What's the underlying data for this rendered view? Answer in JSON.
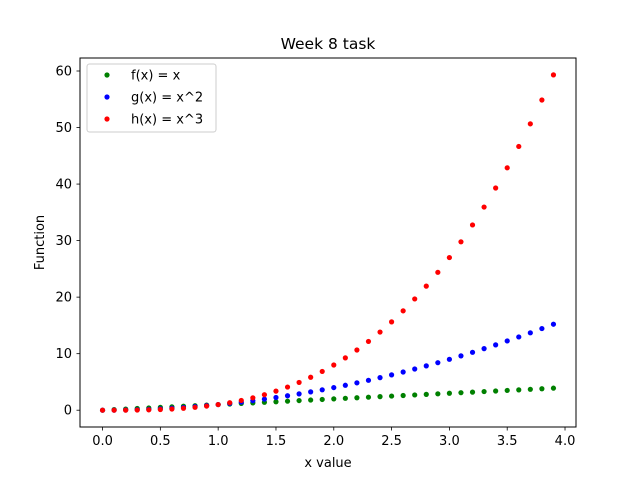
{
  "chart_data": {
    "type": "scatter",
    "title": "Week 8 task",
    "xlabel": "x value",
    "ylabel": "Function",
    "xlim": [
      -0.195,
      4.095
    ],
    "ylim": [
      -2.97,
      62.3
    ],
    "xticks": [
      0.0,
      0.5,
      1.0,
      1.5,
      2.0,
      2.5,
      3.0,
      3.5,
      4.0
    ],
    "xtick_labels": [
      "0.0",
      "0.5",
      "1.0",
      "1.5",
      "2.0",
      "2.5",
      "3.0",
      "3.5",
      "4.0"
    ],
    "yticks": [
      0,
      10,
      20,
      30,
      40,
      50,
      60
    ],
    "ytick_labels": [
      "0",
      "10",
      "20",
      "30",
      "40",
      "50",
      "60"
    ],
    "grid": false,
    "legend_position": "top-left",
    "x": [
      0.0,
      0.1,
      0.2,
      0.3,
      0.4,
      0.5,
      0.6,
      0.7,
      0.8,
      0.9,
      1.0,
      1.1,
      1.2,
      1.3,
      1.4,
      1.5,
      1.6,
      1.7,
      1.8,
      1.9,
      2.0,
      2.1,
      2.2,
      2.3,
      2.4,
      2.5,
      2.6,
      2.7,
      2.8,
      2.9,
      3.0,
      3.1,
      3.2,
      3.3,
      3.4,
      3.5,
      3.6,
      3.7,
      3.8,
      3.9
    ],
    "series": [
      {
        "name": "f(x) = x",
        "color": "#008000",
        "values": [
          0.0,
          0.1,
          0.2,
          0.3,
          0.4,
          0.5,
          0.6,
          0.7,
          0.8,
          0.9,
          1.0,
          1.1,
          1.2,
          1.3,
          1.4,
          1.5,
          1.6,
          1.7,
          1.8,
          1.9,
          2.0,
          2.1,
          2.2,
          2.3,
          2.4,
          2.5,
          2.6,
          2.7,
          2.8,
          2.9,
          3.0,
          3.1,
          3.2,
          3.3,
          3.4,
          3.5,
          3.6,
          3.7,
          3.8,
          3.9
        ]
      },
      {
        "name": "g(x) = x^2",
        "color": "#0000ff",
        "values": [
          0.0,
          0.01,
          0.04,
          0.09,
          0.16,
          0.25,
          0.36,
          0.49,
          0.64,
          0.81,
          1.0,
          1.21,
          1.44,
          1.69,
          1.96,
          2.25,
          2.56,
          2.89,
          3.24,
          3.61,
          4.0,
          4.41,
          4.84,
          5.29,
          5.76,
          6.25,
          6.76,
          7.29,
          7.84,
          8.41,
          9.0,
          9.61,
          10.24,
          10.89,
          11.56,
          12.25,
          12.96,
          13.69,
          14.44,
          15.21
        ]
      },
      {
        "name": "h(x) = x^3",
        "color": "#ff0000",
        "values": [
          0.0,
          0.001,
          0.008,
          0.027,
          0.064,
          0.125,
          0.216,
          0.343,
          0.512,
          0.729,
          1.0,
          1.331,
          1.728,
          2.197,
          2.744,
          3.375,
          4.096,
          4.913,
          5.832,
          6.859,
          8.0,
          9.261,
          10.648,
          12.167,
          13.824,
          15.625,
          17.576,
          19.683,
          21.952,
          24.389,
          27.0,
          29.791,
          32.768,
          35.937,
          39.304,
          42.875,
          46.656,
          50.653,
          54.872,
          59.319
        ]
      }
    ]
  }
}
